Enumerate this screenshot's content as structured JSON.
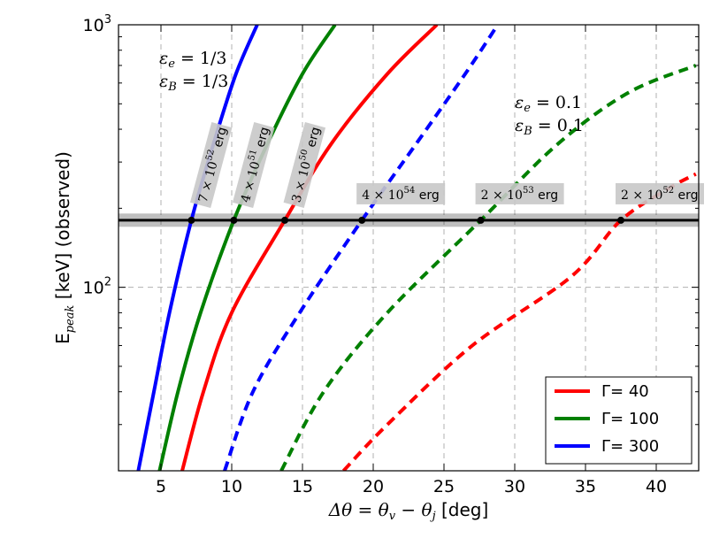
{
  "chart_data": {
    "type": "line",
    "xlabel_math": "Δθ = θ",
    "xlabel_sub_v": "v",
    "xlabel_mid": " − θ",
    "xlabel_sub_j": "j",
    "xlabel_unit": " [deg]",
    "ylabel_main": "E",
    "ylabel_sub": "peak",
    "ylabel_rest": " [keV] (observed)",
    "xlim": [
      2,
      43
    ],
    "ylim": [
      20,
      1000
    ],
    "yscale": "log",
    "grid": true,
    "x_ticks": [
      5,
      10,
      15,
      20,
      25,
      30,
      35,
      40
    ],
    "x_tick_labels": [
      "5",
      "10",
      "15",
      "20",
      "25",
      "30",
      "35",
      "40"
    ],
    "y_ticks": [
      100,
      1000
    ],
    "y_tick_base": "10",
    "y_tick_exps": [
      "2",
      "3"
    ],
    "horizontal_line": {
      "y": 180,
      "band": [
        170,
        191
      ]
    },
    "annotation_left": {
      "line1_sym": "ε",
      "line1_sub": "e",
      "line1_eq": " = 1/3",
      "line2_sym": "ε",
      "line2_sub": "B",
      "line2_eq": " = 1/3"
    },
    "annotation_right": {
      "line1_sym": "ε",
      "line1_sub": "e",
      "line1_eq": " = 0.1",
      "line2_sym": "ε",
      "line2_sub": "B",
      "line2_eq": " = 0.1"
    },
    "series": [
      {
        "name": "Γ= 40",
        "gamma": 40,
        "color": "#ff0000",
        "style": "solid",
        "points": [
          [
            6.5,
            20
          ],
          [
            8,
            40
          ],
          [
            10,
            80
          ],
          [
            13.75,
            180
          ],
          [
            17,
            350
          ],
          [
            21,
            650
          ],
          [
            24.5,
            1000
          ]
        ]
      },
      {
        "name": "Γ= 40",
        "gamma": 40,
        "color": "#ff0000",
        "style": "dashed",
        "points": [
          [
            17.9,
            20
          ],
          [
            21,
            30
          ],
          [
            27,
            60
          ],
          [
            34,
            110
          ],
          [
            37.5,
            180
          ],
          [
            41,
            240
          ],
          [
            42.8,
            270
          ]
        ]
      },
      {
        "name": "Γ= 100",
        "gamma": 100,
        "color": "#008000",
        "style": "solid",
        "points": [
          [
            4.9,
            20
          ],
          [
            6.2,
            40
          ],
          [
            7.8,
            80
          ],
          [
            10.15,
            180
          ],
          [
            12.5,
            350
          ],
          [
            15,
            650
          ],
          [
            17.3,
            1000
          ]
        ]
      },
      {
        "name": "Γ= 100",
        "gamma": 100,
        "color": "#008000",
        "style": "dashed",
        "points": [
          [
            13.5,
            20
          ],
          [
            16.5,
            40
          ],
          [
            21,
            80
          ],
          [
            27.6,
            180
          ],
          [
            33,
            350
          ],
          [
            38,
            550
          ],
          [
            42.8,
            700
          ]
        ]
      },
      {
        "name": "Γ= 300",
        "gamma": 300,
        "color": "#0000ff",
        "style": "solid",
        "points": [
          [
            3.4,
            20
          ],
          [
            4.5,
            40
          ],
          [
            5.6,
            80
          ],
          [
            7.15,
            180
          ],
          [
            8.7,
            350
          ],
          [
            10.3,
            650
          ],
          [
            11.8,
            1000
          ]
        ]
      },
      {
        "name": "Γ= 300",
        "gamma": 300,
        "color": "#0000ff",
        "style": "dashed",
        "points": [
          [
            9.5,
            20
          ],
          [
            11.5,
            40
          ],
          [
            14.8,
            80
          ],
          [
            19.2,
            180
          ],
          [
            23,
            350
          ],
          [
            26.5,
            650
          ],
          [
            28.8,
            1000
          ]
        ]
      }
    ],
    "markers": [
      {
        "x": 7.15,
        "y": 180,
        "mantissa": "7 × 10",
        "exp": "52",
        "unit": " erg",
        "rotated": true
      },
      {
        "x": 10.15,
        "y": 180,
        "mantissa": "4 × 10",
        "exp": "51",
        "unit": " erg",
        "rotated": true
      },
      {
        "x": 13.75,
        "y": 180,
        "mantissa": "3 × 10",
        "exp": "50",
        "unit": " erg",
        "rotated": true
      },
      {
        "x": 19.2,
        "y": 180,
        "mantissa": "4 × 10",
        "exp": "54",
        "unit": " erg",
        "rotated": false
      },
      {
        "x": 27.6,
        "y": 180,
        "mantissa": "2 × 10",
        "exp": "53",
        "unit": " erg",
        "rotated": false
      },
      {
        "x": 37.5,
        "y": 180,
        "mantissa": "2 × 10",
        "exp": "52",
        "unit": " erg",
        "rotated": false
      }
    ],
    "legend": {
      "position": "lower-right",
      "entries": [
        {
          "label": "Γ= 40",
          "color": "#ff0000"
        },
        {
          "label": "Γ= 100",
          "color": "#008000"
        },
        {
          "label": "Γ= 300",
          "color": "#0000ff"
        }
      ]
    }
  }
}
